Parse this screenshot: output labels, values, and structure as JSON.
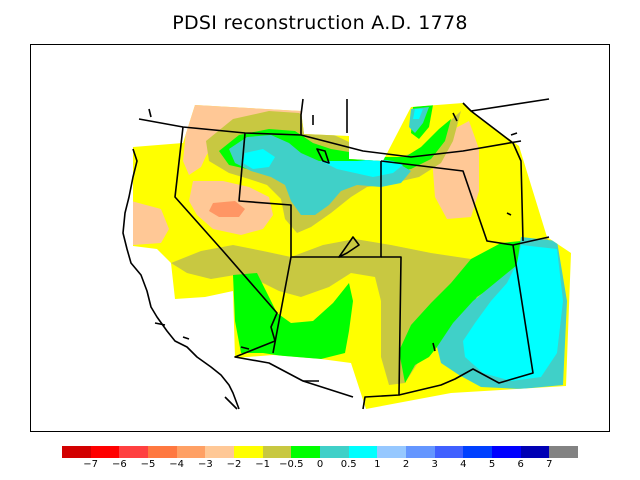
{
  "title": "PDSI reconstruction A.D. 1778",
  "colors": {
    "yellow": "#ffff00",
    "olive": "#c8c841",
    "peach": "#ffc896",
    "salmon": "#ff9664",
    "green": "#00ff00",
    "teal": "#40d0c8",
    "cyan": "#00ffff",
    "outline": "#000000",
    "ocean": "#ffffff"
  },
  "colorbar": {
    "colors": [
      "#d20000",
      "#ff0000",
      "#ff4040",
      "#ff7840",
      "#ffa064",
      "#ffc896",
      "#ffff00",
      "#c8c841",
      "#00ff00",
      "#40d0c8",
      "#00ffff",
      "#96c8ff",
      "#6496ff",
      "#4060ff",
      "#0040ff",
      "#0000ff",
      "#0000b4",
      "#828282"
    ],
    "labels": [
      "−7",
      "−6",
      "−5",
      "−4",
      "−3",
      "−2",
      "−1",
      "−0.5",
      "0",
      "0.5",
      "1",
      "2",
      "3",
      "4",
      "5",
      "6",
      "7"
    ]
  }
}
